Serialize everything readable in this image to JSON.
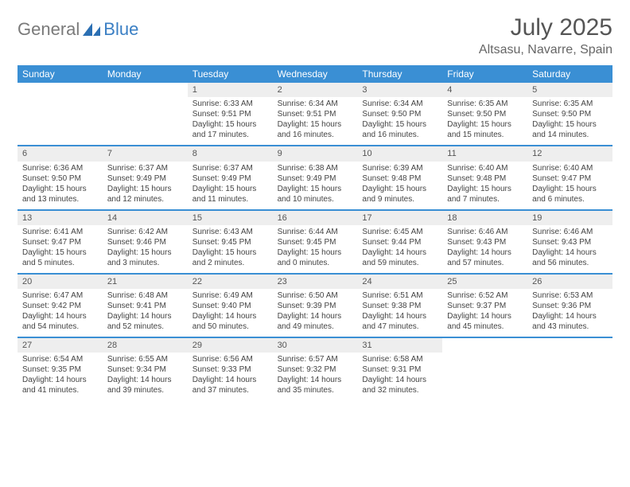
{
  "brand": {
    "part1": "General",
    "part2": "Blue",
    "logo_color": "#2b6fb3"
  },
  "title": {
    "month": "July 2025",
    "location": "Altsasu, Navarre, Spain"
  },
  "colors": {
    "header_bg": "#3a8fd4",
    "week_border": "#3a8fd4",
    "daynum_bg": "#eeeeee",
    "text": "#444444"
  },
  "daysOfWeek": [
    "Sunday",
    "Monday",
    "Tuesday",
    "Wednesday",
    "Thursday",
    "Friday",
    "Saturday"
  ],
  "weeks": [
    [
      null,
      null,
      {
        "n": 1,
        "sunrise": "6:33 AM",
        "sunset": "9:51 PM",
        "daylight": "15 hours and 17 minutes."
      },
      {
        "n": 2,
        "sunrise": "6:34 AM",
        "sunset": "9:51 PM",
        "daylight": "15 hours and 16 minutes."
      },
      {
        "n": 3,
        "sunrise": "6:34 AM",
        "sunset": "9:50 PM",
        "daylight": "15 hours and 16 minutes."
      },
      {
        "n": 4,
        "sunrise": "6:35 AM",
        "sunset": "9:50 PM",
        "daylight": "15 hours and 15 minutes."
      },
      {
        "n": 5,
        "sunrise": "6:35 AM",
        "sunset": "9:50 PM",
        "daylight": "15 hours and 14 minutes."
      }
    ],
    [
      {
        "n": 6,
        "sunrise": "6:36 AM",
        "sunset": "9:50 PM",
        "daylight": "15 hours and 13 minutes."
      },
      {
        "n": 7,
        "sunrise": "6:37 AM",
        "sunset": "9:49 PM",
        "daylight": "15 hours and 12 minutes."
      },
      {
        "n": 8,
        "sunrise": "6:37 AM",
        "sunset": "9:49 PM",
        "daylight": "15 hours and 11 minutes."
      },
      {
        "n": 9,
        "sunrise": "6:38 AM",
        "sunset": "9:49 PM",
        "daylight": "15 hours and 10 minutes."
      },
      {
        "n": 10,
        "sunrise": "6:39 AM",
        "sunset": "9:48 PM",
        "daylight": "15 hours and 9 minutes."
      },
      {
        "n": 11,
        "sunrise": "6:40 AM",
        "sunset": "9:48 PM",
        "daylight": "15 hours and 7 minutes."
      },
      {
        "n": 12,
        "sunrise": "6:40 AM",
        "sunset": "9:47 PM",
        "daylight": "15 hours and 6 minutes."
      }
    ],
    [
      {
        "n": 13,
        "sunrise": "6:41 AM",
        "sunset": "9:47 PM",
        "daylight": "15 hours and 5 minutes."
      },
      {
        "n": 14,
        "sunrise": "6:42 AM",
        "sunset": "9:46 PM",
        "daylight": "15 hours and 3 minutes."
      },
      {
        "n": 15,
        "sunrise": "6:43 AM",
        "sunset": "9:45 PM",
        "daylight": "15 hours and 2 minutes."
      },
      {
        "n": 16,
        "sunrise": "6:44 AM",
        "sunset": "9:45 PM",
        "daylight": "15 hours and 0 minutes."
      },
      {
        "n": 17,
        "sunrise": "6:45 AM",
        "sunset": "9:44 PM",
        "daylight": "14 hours and 59 minutes."
      },
      {
        "n": 18,
        "sunrise": "6:46 AM",
        "sunset": "9:43 PM",
        "daylight": "14 hours and 57 minutes."
      },
      {
        "n": 19,
        "sunrise": "6:46 AM",
        "sunset": "9:43 PM",
        "daylight": "14 hours and 56 minutes."
      }
    ],
    [
      {
        "n": 20,
        "sunrise": "6:47 AM",
        "sunset": "9:42 PM",
        "daylight": "14 hours and 54 minutes."
      },
      {
        "n": 21,
        "sunrise": "6:48 AM",
        "sunset": "9:41 PM",
        "daylight": "14 hours and 52 minutes."
      },
      {
        "n": 22,
        "sunrise": "6:49 AM",
        "sunset": "9:40 PM",
        "daylight": "14 hours and 50 minutes."
      },
      {
        "n": 23,
        "sunrise": "6:50 AM",
        "sunset": "9:39 PM",
        "daylight": "14 hours and 49 minutes."
      },
      {
        "n": 24,
        "sunrise": "6:51 AM",
        "sunset": "9:38 PM",
        "daylight": "14 hours and 47 minutes."
      },
      {
        "n": 25,
        "sunrise": "6:52 AM",
        "sunset": "9:37 PM",
        "daylight": "14 hours and 45 minutes."
      },
      {
        "n": 26,
        "sunrise": "6:53 AM",
        "sunset": "9:36 PM",
        "daylight": "14 hours and 43 minutes."
      }
    ],
    [
      {
        "n": 27,
        "sunrise": "6:54 AM",
        "sunset": "9:35 PM",
        "daylight": "14 hours and 41 minutes."
      },
      {
        "n": 28,
        "sunrise": "6:55 AM",
        "sunset": "9:34 PM",
        "daylight": "14 hours and 39 minutes."
      },
      {
        "n": 29,
        "sunrise": "6:56 AM",
        "sunset": "9:33 PM",
        "daylight": "14 hours and 37 minutes."
      },
      {
        "n": 30,
        "sunrise": "6:57 AM",
        "sunset": "9:32 PM",
        "daylight": "14 hours and 35 minutes."
      },
      {
        "n": 31,
        "sunrise": "6:58 AM",
        "sunset": "9:31 PM",
        "daylight": "14 hours and 32 minutes."
      },
      null,
      null
    ]
  ]
}
